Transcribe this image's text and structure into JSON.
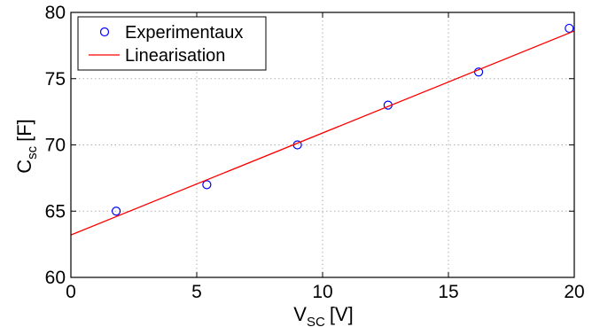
{
  "chart_data": {
    "type": "scatter",
    "xlim": [
      0,
      20
    ],
    "ylim": [
      60,
      80
    ],
    "xticks": [
      0,
      5,
      10,
      15,
      20
    ],
    "yticks": [
      60,
      65,
      70,
      75,
      80
    ],
    "grid": true,
    "legend_position": "top-left",
    "xlabel": {
      "main": "V",
      "sub": "SC",
      "unit": "[V]"
    },
    "ylabel": {
      "main": "C",
      "sub": "sc",
      "unit": "[F]"
    },
    "series": [
      {
        "name": "Experimentaux",
        "kind": "markers",
        "marker": "circle",
        "color": "#0000ff",
        "x": [
          1.8,
          5.4,
          9.0,
          12.6,
          16.2,
          19.8
        ],
        "y": [
          65.0,
          67.0,
          70.0,
          73.0,
          75.5,
          78.8
        ]
      },
      {
        "name": "Linearisation",
        "kind": "line",
        "color": "#ff0000",
        "x": [
          0,
          20
        ],
        "y": [
          63.2,
          78.6
        ]
      }
    ]
  }
}
